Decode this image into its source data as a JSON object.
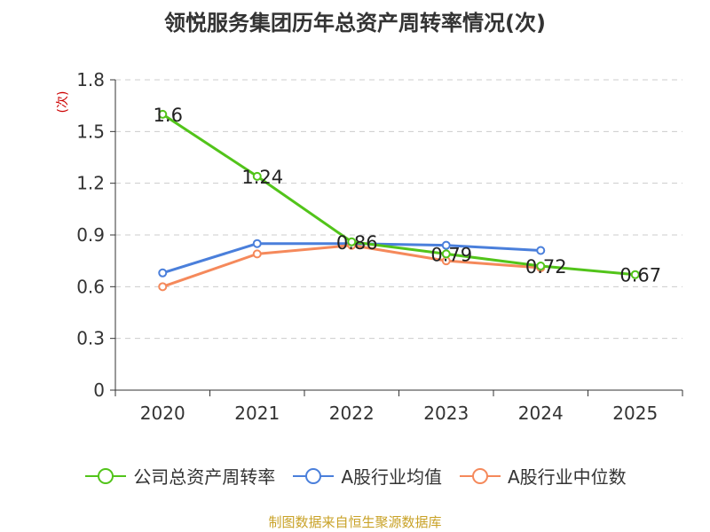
{
  "title": "领悦服务集团历年总资产周转率情况(次)",
  "source": "制图数据来自恒生聚源数据库",
  "chart_data": {
    "type": "line",
    "title": "领悦服务集团历年总资产周转率情况(次)",
    "xlabel": "",
    "ylabel": "(次)",
    "categories": [
      "2020",
      "2021",
      "2022",
      "2023",
      "2024",
      "2025"
    ],
    "yticks": [
      "0",
      "0.3",
      "0.6",
      "0.9",
      "1.2",
      "1.5",
      "1.8"
    ],
    "ylim": [
      0,
      1.8
    ],
    "grid": true,
    "legend_position": "bottom",
    "series": [
      {
        "name": "公司总资产周转率",
        "color": "#52c41a",
        "values": [
          1.6,
          1.24,
          0.86,
          0.79,
          0.72,
          0.67
        ],
        "labels": [
          "1.6",
          "1.24",
          "0.86",
          "0.79",
          "0.72",
          "0.67"
        ]
      },
      {
        "name": "A股行业均值",
        "color": "#4a7fdb",
        "values": [
          0.68,
          0.85,
          0.85,
          0.84,
          0.81,
          null
        ],
        "labels": []
      },
      {
        "name": "A股行业中位数",
        "color": "#f5895b",
        "values": [
          0.6,
          0.79,
          0.84,
          0.75,
          0.71,
          null
        ],
        "labels": []
      }
    ]
  }
}
